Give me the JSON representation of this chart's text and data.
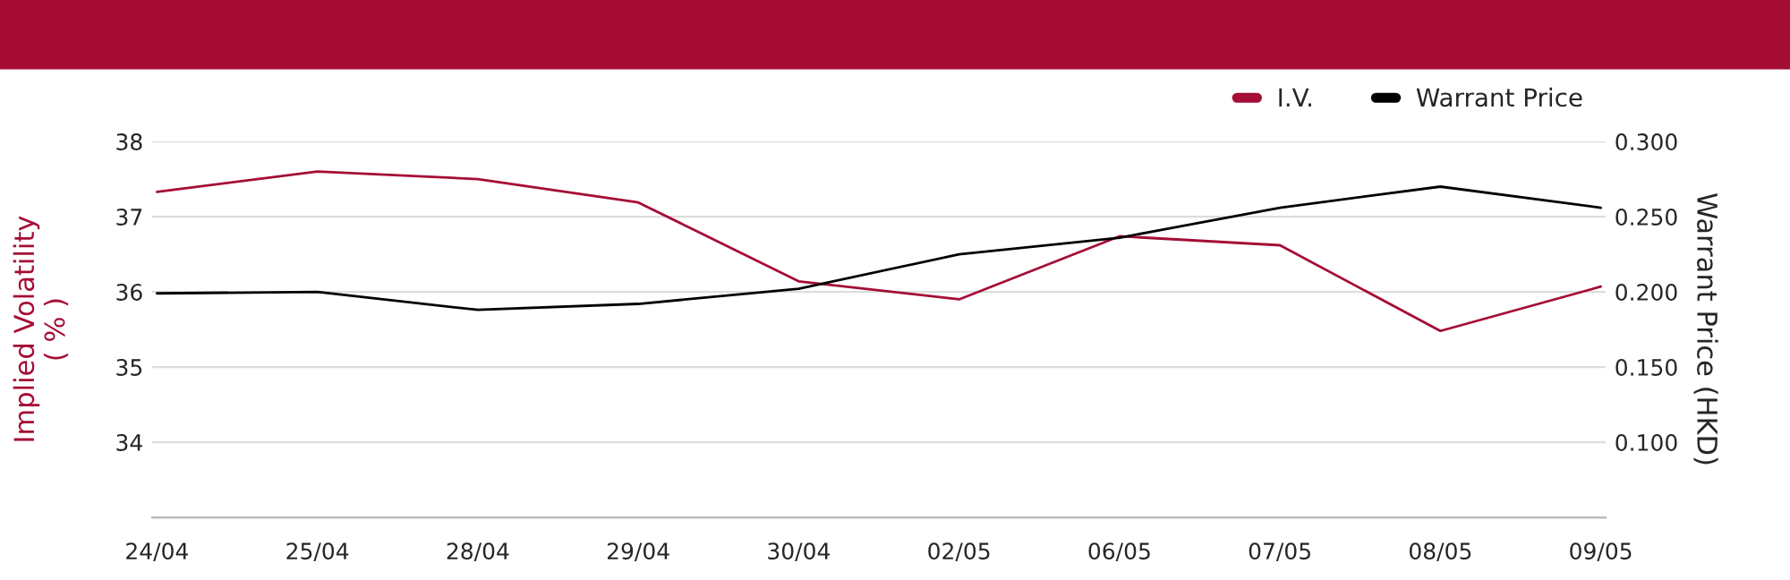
{
  "chart_data": {
    "type": "line",
    "categories": [
      "24/04",
      "25/04",
      "28/04",
      "29/04",
      "30/04",
      "02/05",
      "06/05",
      "07/05",
      "08/05",
      "09/05"
    ],
    "series": [
      {
        "name": "I.V.",
        "color": "#a50d35",
        "values": [
          37.33,
          37.6,
          37.5,
          37.19,
          36.14,
          35.9,
          36.74,
          36.62,
          35.48,
          36.07
        ]
      },
      {
        "name": "Warrant Price",
        "color": "#000000",
        "axis": "y2",
        "values": [
          0.199,
          0.2,
          0.188,
          0.192,
          0.202,
          0.225,
          0.236,
          0.256,
          0.27,
          0.256
        ]
      }
    ],
    "ylabel": "Implied Volatility\n( % )",
    "y2label": "Warrant Price (HKD)",
    "ylim": [
      33,
      38
    ],
    "yticks": [
      34,
      35,
      36,
      37,
      38
    ],
    "y2lim": [
      0.05,
      0.3
    ],
    "y2ticks": [
      {
        "value": 0.1,
        "label": "0.100"
      },
      {
        "value": 0.15,
        "label": "0.150"
      },
      {
        "value": 0.2,
        "label": "0.200"
      },
      {
        "value": 0.25,
        "label": "0.250"
      },
      {
        "value": 0.3,
        "label": "0.300"
      }
    ],
    "grid": "y",
    "legend": "top right",
    "marker": "none",
    "line_style": "solid"
  }
}
